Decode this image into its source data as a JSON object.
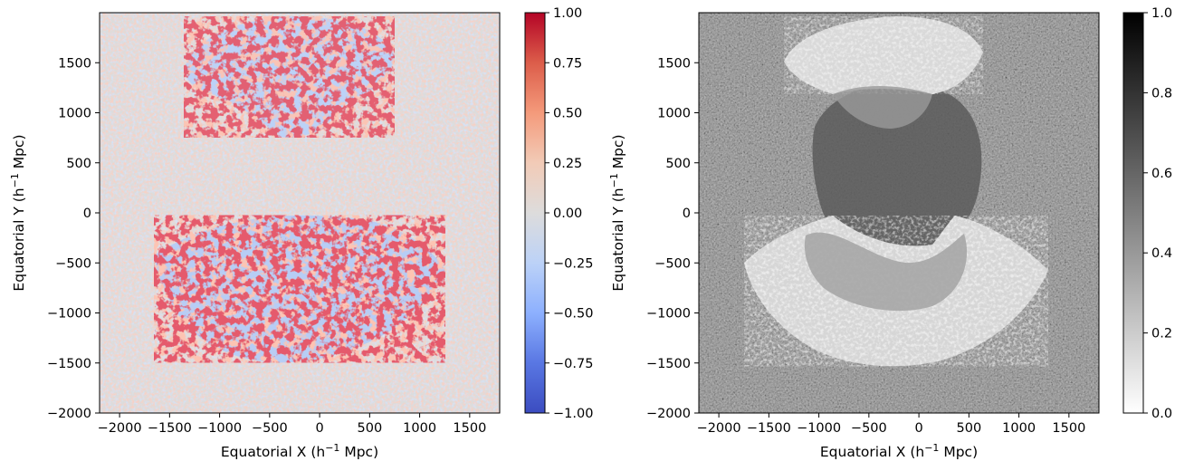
{
  "chart_data": [
    {
      "type": "heatmap",
      "panel": "left",
      "xlabel": "Equatorial X (h⁻¹ Mpc)",
      "ylabel": "Equatorial Y (h⁻¹ Mpc)",
      "xlim": [
        -2200,
        1800
      ],
      "ylim": [
        -2000,
        2000
      ],
      "xticks": [
        "−2000",
        "−1500",
        "−1000",
        "−500",
        "0",
        "500",
        "1000",
        "1500"
      ],
      "yticks": [
        "−2000",
        "−1500",
        "−1000",
        "−500",
        "0",
        "500",
        "1000",
        "1500"
      ],
      "colormap": "coolwarm",
      "color_range": [
        -1.0,
        1.0
      ],
      "colorbar_ticks": [
        "1.00",
        "0.75",
        "0.50",
        "0.25",
        "0.00",
        "−0.25",
        "−0.50",
        "−0.75",
        "−1.00"
      ],
      "background_value": 0.0,
      "regions": [
        {
          "shape": "upper-cap",
          "x_range": [
            -1350,
            750
          ],
          "y_range": [
            750,
            1900
          ]
        },
        {
          "shape": "lower-lens",
          "x_range": [
            -1650,
            1200
          ],
          "y_range": [
            -1500,
            -50
          ]
        }
      ]
    },
    {
      "type": "heatmap",
      "panel": "right",
      "xlabel": "Equatorial X (h⁻¹ Mpc)",
      "ylabel": "Equatorial Y (h⁻¹ Mpc)",
      "xlim": [
        -2200,
        1800
      ],
      "ylim": [
        -2000,
        2000
      ],
      "xticks": [
        "−2000",
        "−1500",
        "−1000",
        "−500",
        "0",
        "500",
        "1000",
        "1500"
      ],
      "yticks": [
        "−2000",
        "−1500",
        "−1000",
        "−500",
        "0",
        "500",
        "1000",
        "1500"
      ],
      "colormap": "Greys",
      "color_range": [
        0.0,
        1.0
      ],
      "colorbar_ticks": [
        "1.0",
        "0.8",
        "0.6",
        "0.4",
        "0.2",
        "0.0"
      ],
      "background_value": 0.45,
      "regions": [
        {
          "shape": "upper-band",
          "x_range": [
            -1350,
            750
          ],
          "y_range": [
            900,
            1900
          ]
        },
        {
          "shape": "lower-arc-band",
          "x_range": [
            -1750,
            1300
          ],
          "y_range": [
            -1500,
            0
          ]
        },
        {
          "shape": "central-disk",
          "x_range": [
            -900,
            600
          ],
          "y_range": [
            -600,
            1000
          ]
        }
      ]
    }
  ]
}
